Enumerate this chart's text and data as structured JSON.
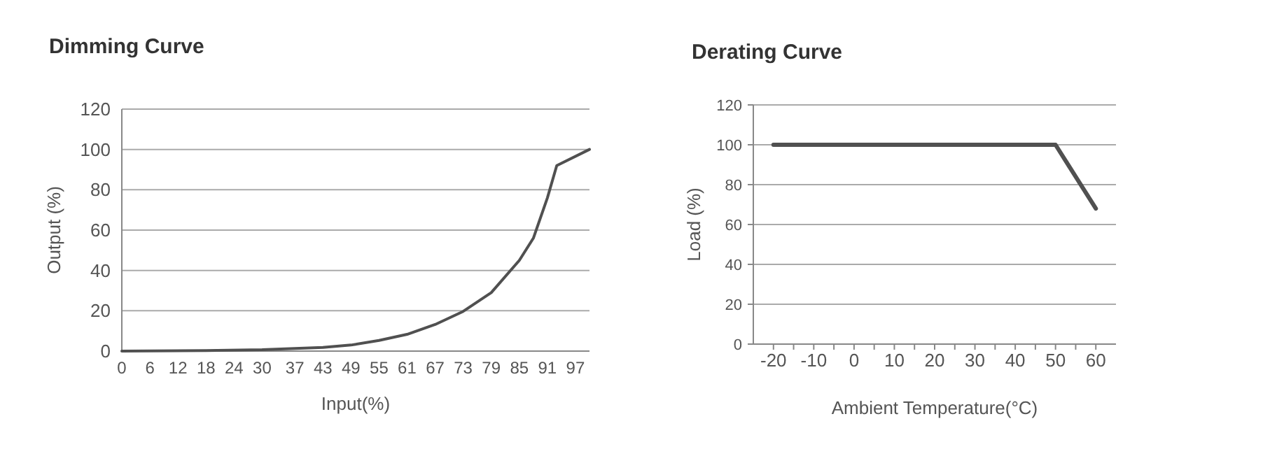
{
  "chart_data": [
    {
      "type": "line",
      "title": "Dimming Curve",
      "xlabel": "Input(%)",
      "ylabel": "Output (%)",
      "x": [
        0,
        18,
        30,
        43,
        49,
        55,
        61,
        67,
        73,
        79,
        85,
        88,
        91,
        93,
        100
      ],
      "series": [
        {
          "color": "#505050",
          "values": [
            0,
            0.3,
            0.7,
            1.8,
            3,
            5.3,
            8.3,
            13.2,
            19.7,
            29,
            45,
            56,
            76,
            92,
            100
          ]
        }
      ],
      "xlim": [
        0,
        100
      ],
      "ylim": [
        0,
        120
      ],
      "xticks": [
        0,
        6,
        12,
        18,
        24,
        30,
        37,
        43,
        49,
        55,
        61,
        67,
        73,
        79,
        85,
        91,
        97
      ],
      "yticks": [
        0,
        20,
        40,
        60,
        80,
        100,
        120
      ],
      "grid": "y",
      "marker": "none",
      "line_style": "solid"
    },
    {
      "type": "line",
      "title": "Derating Curve",
      "xlabel": "Ambient Temperature(°C)",
      "ylabel": "Load (%)",
      "x": [
        -20,
        50,
        60
      ],
      "series": [
        {
          "color": "#505050",
          "values": [
            100,
            100,
            68
          ]
        }
      ],
      "xlim": [
        -25,
        65
      ],
      "ylim": [
        0,
        120
      ],
      "xticks": [
        -20,
        {
          "value": -15,
          "label": null
        },
        -10,
        {
          "value": -5,
          "label": null
        },
        0,
        {
          "value": 5,
          "label": null
        },
        10,
        {
          "value": 15,
          "label": null
        },
        20,
        {
          "value": 25,
          "label": null
        },
        30,
        {
          "value": 35,
          "label": null
        },
        40,
        {
          "value": 45,
          "label": null
        },
        50,
        {
          "value": 55,
          "label": null
        },
        60
      ],
      "yticks": [
        0,
        20,
        40,
        60,
        80,
        100,
        120
      ],
      "grid": "y",
      "marker": "none",
      "line_style": "solid"
    }
  ]
}
